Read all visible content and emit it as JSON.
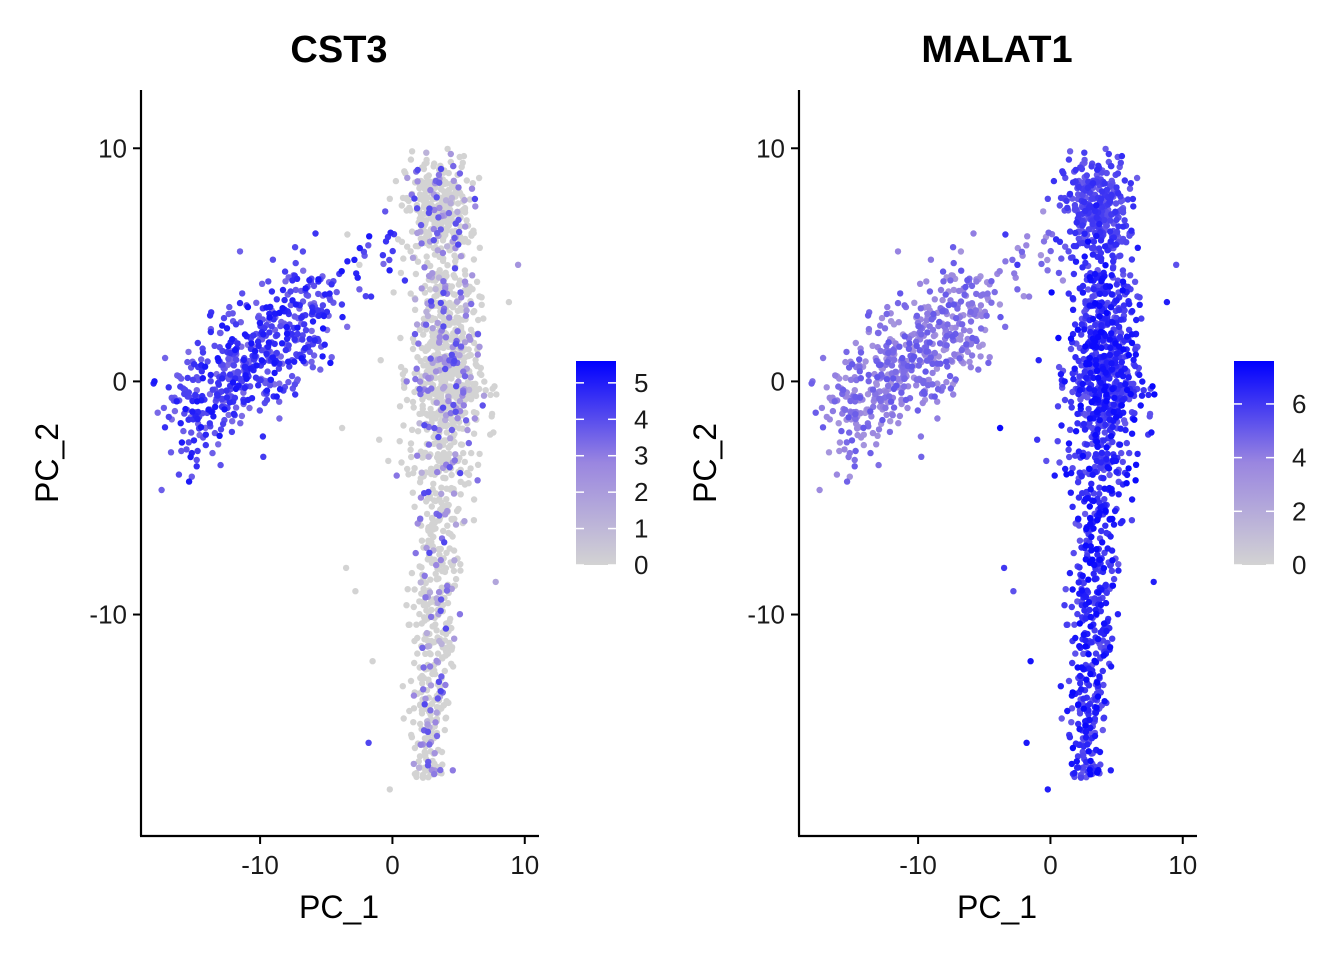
{
  "chart_data": [
    {
      "type": "scatter",
      "title": "CST3",
      "xlabel": "PC_1",
      "ylabel": "PC_2",
      "xlim": [
        -19,
        11
      ],
      "ylim": [
        -19.5,
        12.5
      ],
      "xticks": [
        -10,
        0,
        10
      ],
      "yticks": [
        -10,
        0,
        10
      ],
      "xtick_labels": [
        "-10",
        "0",
        "10"
      ],
      "ytick_labels": [
        "-10",
        "0",
        "10"
      ],
      "legend_position": "right",
      "color_scale": {
        "low": "#d3d3d3",
        "high": "#0000ff",
        "min": 0,
        "max": 5.6
      },
      "colorbar_ticks": [
        0,
        1,
        2,
        3,
        4,
        5
      ],
      "colorbar_labels": [
        "0",
        "1",
        "2",
        "3",
        "4",
        "5"
      ],
      "clusters_summary": [
        {
          "region": "left arm",
          "x_center": -12.5,
          "y_center": 0.5,
          "expression": "high (~3.5-5)"
        },
        {
          "region": "top cluster",
          "x_center": 3.5,
          "y_center": 7.5,
          "expression": "mostly 0, some moderate"
        },
        {
          "region": "right column",
          "x_center": 4.0,
          "y_center": -3.0,
          "expression": "mostly 0, sparse moderate"
        }
      ]
    },
    {
      "type": "scatter",
      "title": "MALAT1",
      "xlabel": "PC_1",
      "ylabel": "PC_2",
      "xlim": [
        -19,
        11
      ],
      "ylim": [
        -19.5,
        12.5
      ],
      "xticks": [
        -10,
        0,
        10
      ],
      "yticks": [
        -10,
        0,
        10
      ],
      "xtick_labels": [
        "-10",
        "0",
        "10"
      ],
      "ytick_labels": [
        "-10",
        "0",
        "10"
      ],
      "legend_position": "right",
      "color_scale": {
        "low": "#d3d3d3",
        "high": "#0000ff",
        "min": 0,
        "max": 7.6
      },
      "colorbar_ticks": [
        0,
        2,
        4,
        6
      ],
      "colorbar_labels": [
        "0",
        "2",
        "4",
        "6"
      ],
      "clusters_summary": [
        {
          "region": "left arm",
          "x_center": -12.5,
          "y_center": 0.5,
          "expression": "moderate (~4-5)"
        },
        {
          "region": "top cluster",
          "x_center": 3.5,
          "y_center": 7.5,
          "expression": "high (~5-6)"
        },
        {
          "region": "right column",
          "x_center": 4.0,
          "y_center": -3.0,
          "expression": "high (~5-7)"
        }
      ]
    }
  ]
}
